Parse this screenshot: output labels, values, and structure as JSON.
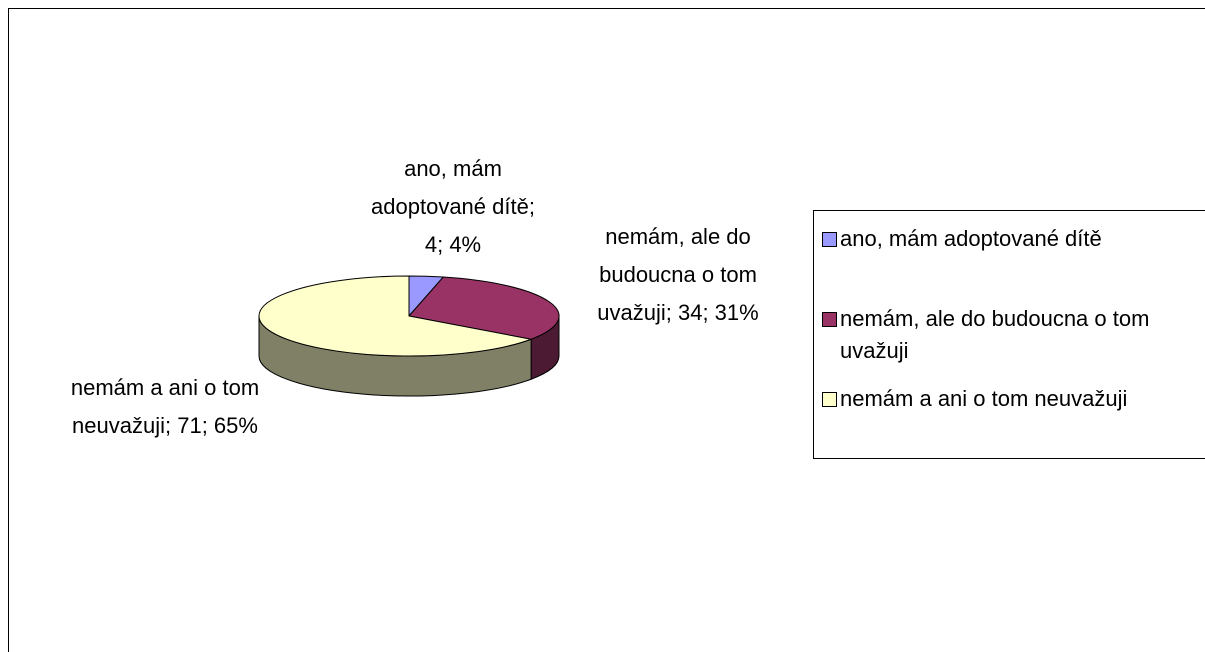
{
  "chart_data": {
    "type": "pie3d",
    "categories": [
      "ano, mám adoptované dítě",
      "nemám, ale do budoucna o tom uvažuji",
      "nemám a ani o tom neuvažuji"
    ],
    "values": [
      4,
      34,
      71
    ],
    "value_labels": [
      "ano, mám adoptované dítě; 4; 4%",
      "nemám, ale do budoucna o tom uvažuji; 34; 31%",
      "nemám a ani o tom neuvažuji; 71; 65%"
    ],
    "colors": [
      "#9999ff",
      "#993366",
      "#ffffcc"
    ],
    "legend": "right"
  }
}
